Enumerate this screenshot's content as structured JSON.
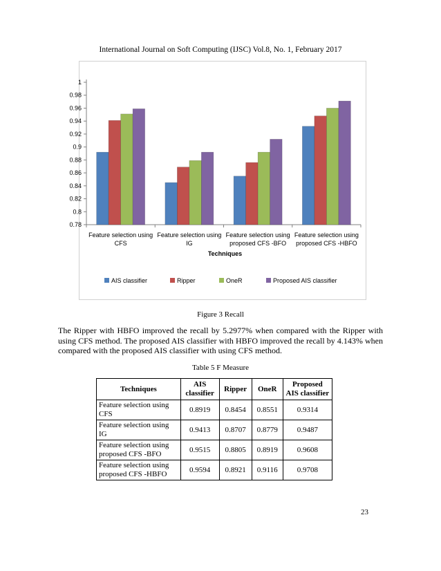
{
  "header": "International Journal on Soft Computing (IJSC) Vol.8, No. 1, February 2017",
  "chart_data": {
    "type": "bar",
    "categories": [
      [
        "Feature selection using",
        "CFS"
      ],
      [
        "Feature selection using",
        "IG"
      ],
      [
        "Feature selection using",
        "proposed CFS -BFO"
      ],
      [
        "Feature selection using",
        "proposed CFS -HBFO"
      ]
    ],
    "series": [
      {
        "name": "AIS classifier",
        "color": "#4f81bd",
        "values": [
          0.892,
          0.845,
          0.855,
          0.932
        ]
      },
      {
        "name": "Ripper",
        "color": "#c0504d",
        "values": [
          0.941,
          0.869,
          0.876,
          0.948
        ]
      },
      {
        "name": "OneR",
        "color": "#9bbb59",
        "values": [
          0.951,
          0.879,
          0.892,
          0.96
        ]
      },
      {
        "name": "Proposed AIS classifier",
        "color": "#8064a2",
        "values": [
          0.959,
          0.892,
          0.912,
          0.971
        ]
      }
    ],
    "xlabel": "Techniques",
    "ylim": [
      0.78,
      1
    ],
    "yticks": [
      "0.78",
      "0.8",
      "0.82",
      "0.84",
      "0.86",
      "0.88",
      "0.9",
      "0.92",
      "0.94",
      "0.96",
      "0.98",
      "1"
    ],
    "grid": false,
    "legend": "bottom"
  },
  "figure_caption": "Figure 3 Recall",
  "paragraph": "The Ripper with HBFO improved the recall by 5.2977% when compared with the Ripper with using CFS method. The proposed AIS classifier with HBFO improved the recall by 4.143% when compared with the proposed AIS classifier with using CFS method.",
  "table_caption": "Table 5 F Measure",
  "table": {
    "headers": {
      "techniques": "Techniques",
      "ais": [
        "AIS",
        "classifier"
      ],
      "ripper": "Ripper",
      "oner": "OneR",
      "proposed": [
        "Proposed",
        "AIS classifier"
      ]
    },
    "rows": [
      {
        "technique": [
          "Feature selection using CFS"
        ],
        "ais": "0.8919",
        "ripper": "0.8454",
        "oner": "0.8551",
        "proposed": "0.9314"
      },
      {
        "technique": [
          "Feature selection using IG"
        ],
        "ais": "0.9413",
        "ripper": "0.8707",
        "oner": "0.8779",
        "proposed": "0.9487"
      },
      {
        "technique": [
          "Feature selection using",
          "proposed CFS -BFO"
        ],
        "ais": "0.9515",
        "ripper": "0.8805",
        "oner": "0.8919",
        "proposed": "0.9608"
      },
      {
        "technique": [
          "Feature selection using",
          "proposed CFS -HBFO"
        ],
        "ais": "0.9594",
        "ripper": "0.8921",
        "oner": "0.9116",
        "proposed": "0.9708"
      }
    ]
  },
  "page_number": "23"
}
